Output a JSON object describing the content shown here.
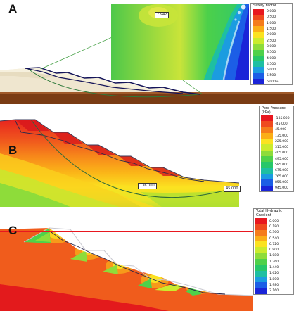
{
  "panel_a": {
    "letter": "A",
    "callout": "7.942",
    "legend": {
      "title": "Safety Factor",
      "values": [
        "0.000",
        "0.500",
        "1.000",
        "1.500",
        "2.000",
        "2.500",
        "3.000",
        "3.500",
        "4.000",
        "4.500",
        "5.000",
        "5.500",
        "6.000+"
      ],
      "colors": [
        "#e8171f",
        "#ef4a1f",
        "#f57c1b",
        "#fbae17",
        "#fbe221",
        "#cbeb2d",
        "#8edc3a",
        "#4fd14a",
        "#27c769",
        "#1ebfa2",
        "#1b9ce0",
        "#1c5ee6",
        "#1a24d8"
      ]
    }
  },
  "panel_b": {
    "letter": "B",
    "callout_left": "136.000",
    "callout_right": "45.000",
    "legend": {
      "title": "Pore Pressure (kPa)",
      "values": [
        "-135.000",
        "-45.000",
        "45.000",
        "135.000",
        "225.000",
        "315.000",
        "405.000",
        "495.000",
        "585.000",
        "675.000",
        "765.000",
        "855.000",
        "945.000"
      ],
      "colors": [
        "#e8171f",
        "#ef4a1f",
        "#f57c1b",
        "#fbae17",
        "#fbe221",
        "#cbeb2d",
        "#8edc3a",
        "#4fd14a",
        "#27c769",
        "#1ebfa2",
        "#1b9ce0",
        "#1c5ee6",
        "#1a24d8"
      ]
    }
  },
  "panel_c": {
    "letter": "C",
    "legend": {
      "title": "Total Hydraulic Gradient",
      "values": [
        "0.000",
        "0.180",
        "0.360",
        "0.540",
        "0.720",
        "0.900",
        "1.080",
        "1.260",
        "1.440",
        "1.620",
        "1.800",
        "1.980",
        "2.160"
      ],
      "colors": [
        "#e8171f",
        "#ef4a1f",
        "#f57c1b",
        "#fbae17",
        "#fbe221",
        "#cbeb2d",
        "#8edc3a",
        "#4fd14a",
        "#27c769",
        "#1ebfa2",
        "#1b9ce0",
        "#1c5ee6",
        "#1a24d8"
      ]
    }
  }
}
